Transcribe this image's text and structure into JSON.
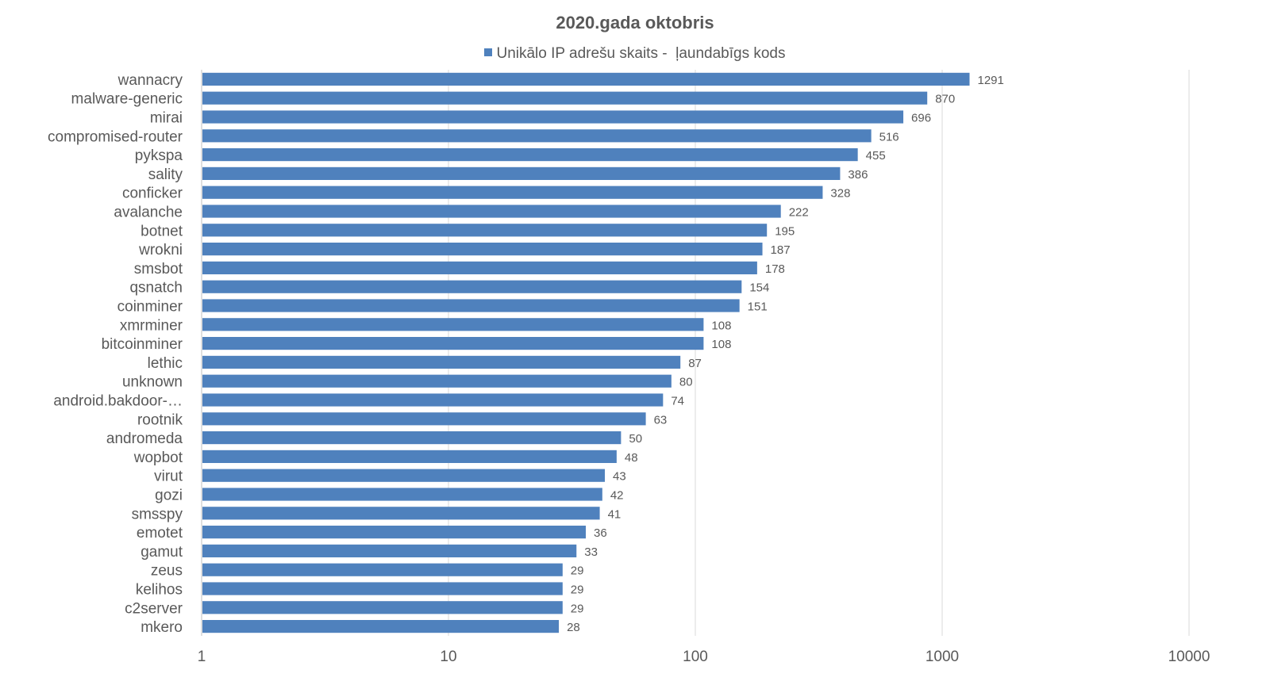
{
  "colors": {
    "bar": "#4f81bd",
    "grid": "#d9d9d9",
    "axis": "#bfbfbf",
    "text": "#595959"
  },
  "chart_data": {
    "type": "bar",
    "orientation": "horizontal",
    "title": "2020.gada oktobris",
    "xscale": "log",
    "xlim": [
      1,
      10000
    ],
    "xticks": [
      "1",
      "10",
      "100",
      "1000",
      "10000"
    ],
    "grid": true,
    "legend_position": "top",
    "categories": [
      "wannacry",
      "malware-generic",
      "mirai",
      "compromised-router",
      "pykspa",
      "sality",
      "conficker",
      "avalanche",
      "botnet",
      "wrokni",
      "smsbot",
      "qsnatch",
      "coinminer",
      "xmrminer",
      "bitcoinminer",
      "lethic",
      "unknown",
      "android.bakdoor-…",
      "rootnik",
      "andromeda",
      "wopbot",
      "virut",
      "gozi",
      "smsspy",
      "emotet",
      "gamut",
      "zeus",
      "kelihos",
      "c2server",
      "mkero"
    ],
    "series": [
      {
        "name": "Unikālo IP adrešu skaits -  ļaundabīgs kods",
        "values": [
          1291,
          870,
          696,
          516,
          455,
          386,
          328,
          222,
          195,
          187,
          178,
          154,
          151,
          108,
          108,
          87,
          80,
          74,
          63,
          50,
          48,
          43,
          42,
          41,
          36,
          33,
          29,
          29,
          29,
          28
        ]
      }
    ]
  }
}
